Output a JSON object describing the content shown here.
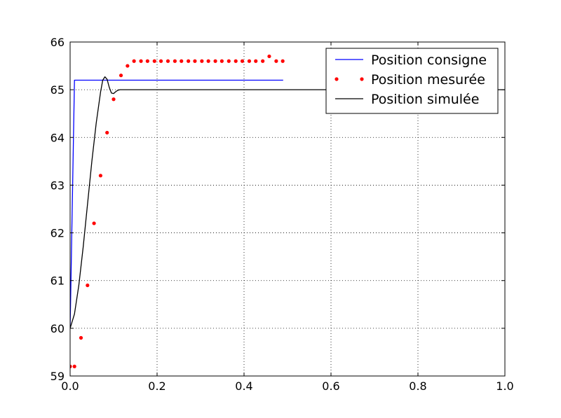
{
  "chart_data": {
    "type": "line",
    "title": "",
    "xlabel": "",
    "ylabel": "",
    "xlim": [
      0.0,
      1.0
    ],
    "ylim": [
      59,
      66
    ],
    "grid": true,
    "legend_position": "top-right",
    "x_ticks": [
      "0.0",
      "0.2",
      "0.4",
      "0.6",
      "0.8",
      "1.0"
    ],
    "y_ticks": [
      "59",
      "60",
      "61",
      "62",
      "63",
      "64",
      "65",
      "66"
    ],
    "series": [
      {
        "name": "Position consigne",
        "style": "line",
        "color": "#0000ff",
        "x": [
          0.0,
          0.01,
          0.49
        ],
        "y": [
          60.0,
          65.2,
          65.2
        ]
      },
      {
        "name": "Position mesurée",
        "style": "markers",
        "color": "#ff0000",
        "x": [
          0.0,
          0.01,
          0.025,
          0.04,
          0.055,
          0.07,
          0.085,
          0.1,
          0.117,
          0.132,
          0.147,
          0.163,
          0.178,
          0.194,
          0.209,
          0.225,
          0.241,
          0.256,
          0.272,
          0.287,
          0.303,
          0.318,
          0.334,
          0.349,
          0.365,
          0.381,
          0.396,
          0.412,
          0.427,
          0.443,
          0.458,
          0.474,
          0.489
        ],
        "y": [
          59.2,
          59.2,
          59.8,
          60.9,
          62.2,
          63.2,
          64.1,
          64.8,
          65.3,
          65.5,
          65.6,
          65.6,
          65.6,
          65.6,
          65.6,
          65.6,
          65.6,
          65.6,
          65.6,
          65.6,
          65.6,
          65.6,
          65.6,
          65.6,
          65.6,
          65.6,
          65.6,
          65.6,
          65.6,
          65.6,
          65.7,
          65.6,
          65.6
        ]
      },
      {
        "name": "Position simulée",
        "style": "line",
        "color": "#000000",
        "x": [
          0.0,
          0.01,
          0.02,
          0.03,
          0.04,
          0.05,
          0.06,
          0.07,
          0.075,
          0.08,
          0.085,
          0.09,
          0.095,
          0.1,
          0.105,
          0.11,
          0.115,
          0.12,
          0.13,
          0.15,
          0.2,
          0.3,
          0.5,
          0.7,
          1.0
        ],
        "y": [
          60.0,
          60.3,
          60.9,
          61.7,
          62.6,
          63.5,
          64.3,
          64.95,
          65.2,
          65.27,
          65.22,
          65.05,
          64.93,
          64.92,
          64.96,
          64.99,
          65.0,
          65.0,
          65.0,
          65.0,
          65.0,
          65.0,
          65.0,
          65.0,
          65.0
        ]
      }
    ]
  }
}
